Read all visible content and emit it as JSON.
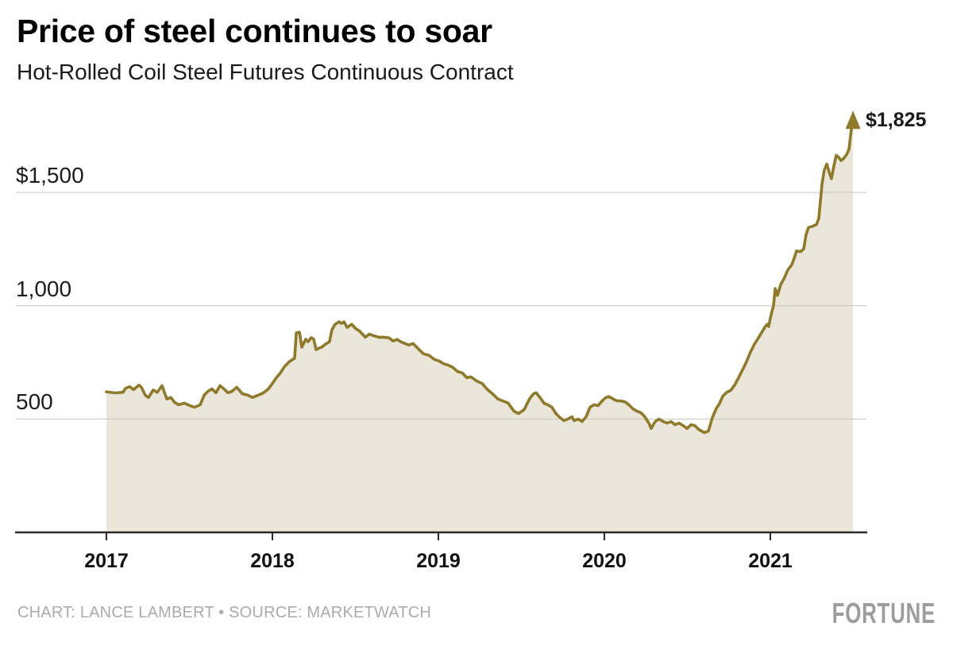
{
  "chart_data": {
    "type": "area",
    "title": "Price of steel continues to soar",
    "subtitle": "Hot-Rolled Coil Steel Futures Continuous Contract",
    "end_label": "$1,825",
    "end_value": 1825,
    "line_color": "#8f7a2b",
    "fill_color": "#eae7da",
    "gridline_color": "#c8c6bc",
    "axis_color": "#2b2b2b",
    "x_range": [
      2017.0,
      2021.5
    ],
    "y_range": [
      0,
      1900
    ],
    "grid": true,
    "legend": "none",
    "yticks": [
      {
        "value": 500,
        "label": "500"
      },
      {
        "value": 1000,
        "label": "1,000"
      },
      {
        "value": 1500,
        "label": "$1,500"
      }
    ],
    "xticks": [
      {
        "value": 2017,
        "label": "2017"
      },
      {
        "value": 2018,
        "label": "2018"
      },
      {
        "value": 2019,
        "label": "2019"
      },
      {
        "value": 2020,
        "label": "2020"
      },
      {
        "value": 2021,
        "label": "2021"
      }
    ],
    "series": [
      {
        "name": "Hot-Rolled Coil Steel Futures Continuous Contract",
        "points": [
          [
            2017.0,
            620
          ],
          [
            2017.053,
            615
          ],
          [
            2017.1,
            618
          ],
          [
            2017.115,
            635
          ],
          [
            2017.139,
            643
          ],
          [
            2017.163,
            630
          ],
          [
            2017.196,
            650
          ],
          [
            2017.211,
            640
          ],
          [
            2017.234,
            605
          ],
          [
            2017.254,
            595
          ],
          [
            2017.282,
            628
          ],
          [
            2017.306,
            618
          ],
          [
            2017.335,
            647
          ],
          [
            2017.364,
            588
          ],
          [
            2017.388,
            595
          ],
          [
            2017.411,
            573
          ],
          [
            2017.435,
            563
          ],
          [
            2017.469,
            570
          ],
          [
            2017.507,
            558
          ],
          [
            2017.531,
            552
          ],
          [
            2017.565,
            563
          ],
          [
            2017.589,
            605
          ],
          [
            2017.612,
            622
          ],
          [
            2017.636,
            633
          ],
          [
            2017.66,
            616
          ],
          [
            2017.684,
            647
          ],
          [
            2017.708,
            633
          ],
          [
            2017.732,
            616
          ],
          [
            2017.756,
            622
          ],
          [
            2017.785,
            640
          ],
          [
            2017.818,
            612
          ],
          [
            2017.852,
            605
          ],
          [
            2017.88,
            595
          ],
          [
            2017.914,
            605
          ],
          [
            2017.947,
            616
          ],
          [
            2017.976,
            633
          ],
          [
            2018.0,
            657
          ],
          [
            2018.024,
            682
          ],
          [
            2018.048,
            703
          ],
          [
            2018.072,
            730
          ],
          [
            2018.1,
            752
          ],
          [
            2018.12,
            762
          ],
          [
            2018.134,
            768
          ],
          [
            2018.144,
            880
          ],
          [
            2018.163,
            883
          ],
          [
            2018.177,
            817
          ],
          [
            2018.201,
            852
          ],
          [
            2018.215,
            841
          ],
          [
            2018.234,
            859
          ],
          [
            2018.249,
            852
          ],
          [
            2018.263,
            806
          ],
          [
            2018.282,
            813
          ],
          [
            2018.297,
            817
          ],
          [
            2018.321,
            831
          ],
          [
            2018.344,
            841
          ],
          [
            2018.359,
            894
          ],
          [
            2018.378,
            918
          ],
          [
            2018.402,
            929
          ],
          [
            2018.416,
            922
          ],
          [
            2018.431,
            929
          ],
          [
            2018.45,
            904
          ],
          [
            2018.464,
            911
          ],
          [
            2018.478,
            918
          ],
          [
            2018.498,
            901
          ],
          [
            2018.512,
            894
          ],
          [
            2018.526,
            887
          ],
          [
            2018.56,
            861
          ],
          [
            2018.584,
            875
          ],
          [
            2018.608,
            868
          ],
          [
            2018.641,
            861
          ],
          [
            2018.67,
            861
          ],
          [
            2018.703,
            858
          ],
          [
            2018.727,
            844
          ],
          [
            2018.751,
            851
          ],
          [
            2018.775,
            840
          ],
          [
            2018.799,
            833
          ],
          [
            2018.823,
            826
          ],
          [
            2018.847,
            833
          ],
          [
            2018.88,
            809
          ],
          [
            2018.909,
            788
          ],
          [
            2018.943,
            781
          ],
          [
            2018.976,
            763
          ],
          [
            2019.005,
            756
          ],
          [
            2019.029,
            745
          ],
          [
            2019.057,
            738
          ],
          [
            2019.086,
            728
          ],
          [
            2019.115,
            710
          ],
          [
            2019.144,
            703
          ],
          [
            2019.172,
            682
          ],
          [
            2019.196,
            686
          ],
          [
            2019.23,
            668
          ],
          [
            2019.263,
            657
          ],
          [
            2019.292,
            633
          ],
          [
            2019.325,
            612
          ],
          [
            2019.359,
            588
          ],
          [
            2019.388,
            580
          ],
          [
            2019.421,
            570
          ],
          [
            2019.455,
            535
          ],
          [
            2019.483,
            524
          ],
          [
            2019.517,
            542
          ],
          [
            2019.55,
            590
          ],
          [
            2019.574,
            612
          ],
          [
            2019.589,
            616
          ],
          [
            2019.612,
            595
          ],
          [
            2019.636,
            570
          ],
          [
            2019.66,
            563
          ],
          [
            2019.684,
            552
          ],
          [
            2019.708,
            524
          ],
          [
            2019.732,
            507
          ],
          [
            2019.756,
            493
          ],
          [
            2019.78,
            500
          ],
          [
            2019.804,
            510
          ],
          [
            2019.818,
            493
          ],
          [
            2019.842,
            500
          ],
          [
            2019.866,
            489
          ],
          [
            2019.89,
            510
          ],
          [
            2019.914,
            552
          ],
          [
            2019.938,
            563
          ],
          [
            2019.962,
            559
          ],
          [
            2019.986,
            580
          ],
          [
            2020.01,
            595
          ],
          [
            2020.029,
            599
          ],
          [
            2020.053,
            588
          ],
          [
            2020.077,
            580
          ],
          [
            2020.1,
            580
          ],
          [
            2020.124,
            576
          ],
          [
            2020.148,
            563
          ],
          [
            2020.172,
            545
          ],
          [
            2020.196,
            535
          ],
          [
            2020.22,
            528
          ],
          [
            2020.244,
            510
          ],
          [
            2020.268,
            482
          ],
          [
            2020.282,
            458
          ],
          [
            2020.306,
            489
          ],
          [
            2020.33,
            500
          ],
          [
            2020.354,
            489
          ],
          [
            2020.378,
            482
          ],
          [
            2020.402,
            489
          ],
          [
            2020.426,
            475
          ],
          [
            2020.45,
            482
          ],
          [
            2020.474,
            471
          ],
          [
            2020.498,
            458
          ],
          [
            2020.522,
            475
          ],
          [
            2020.545,
            471
          ],
          [
            2020.569,
            454
          ],
          [
            2020.603,
            440
          ],
          [
            2020.627,
            447
          ],
          [
            2020.651,
            507
          ],
          [
            2020.675,
            548
          ],
          [
            2020.694,
            568
          ],
          [
            2020.713,
            600
          ],
          [
            2020.737,
            618
          ],
          [
            2020.761,
            626
          ],
          [
            2020.785,
            650
          ],
          [
            2020.809,
            683
          ],
          [
            2020.833,
            718
          ],
          [
            2020.856,
            752
          ],
          [
            2020.88,
            795
          ],
          [
            2020.904,
            830
          ],
          [
            2020.928,
            858
          ],
          [
            2020.952,
            887
          ],
          [
            2020.967,
            905
          ],
          [
            2020.981,
            918
          ],
          [
            2020.99,
            908
          ],
          [
            2021.0,
            945
          ],
          [
            2021.01,
            975
          ],
          [
            2021.019,
            1000
          ],
          [
            2021.029,
            1076
          ],
          [
            2021.043,
            1045
          ],
          [
            2021.062,
            1093
          ],
          [
            2021.086,
            1125
          ],
          [
            2021.105,
            1157
          ],
          [
            2021.129,
            1181
          ],
          [
            2021.144,
            1210
          ],
          [
            2021.158,
            1242
          ],
          [
            2021.182,
            1238
          ],
          [
            2021.201,
            1250
          ],
          [
            2021.215,
            1312
          ],
          [
            2021.23,
            1345
          ],
          [
            2021.254,
            1350
          ],
          [
            2021.278,
            1358
          ],
          [
            2021.292,
            1385
          ],
          [
            2021.301,
            1455
          ],
          [
            2021.311,
            1535
          ],
          [
            2021.325,
            1598
          ],
          [
            2021.34,
            1625
          ],
          [
            2021.354,
            1590
          ],
          [
            2021.368,
            1560
          ],
          [
            2021.383,
            1616
          ],
          [
            2021.397,
            1663
          ],
          [
            2021.411,
            1655
          ],
          [
            2021.426,
            1640
          ],
          [
            2021.44,
            1648
          ],
          [
            2021.459,
            1666
          ],
          [
            2021.474,
            1690
          ],
          [
            2021.483,
            1748
          ],
          [
            2021.498,
            1825
          ]
        ]
      }
    ]
  },
  "header": {},
  "footer": {
    "credit": "CHART: LANCE LAMBERT • SOURCE: MARKETWATCH",
    "brand": "FORTUNE"
  }
}
